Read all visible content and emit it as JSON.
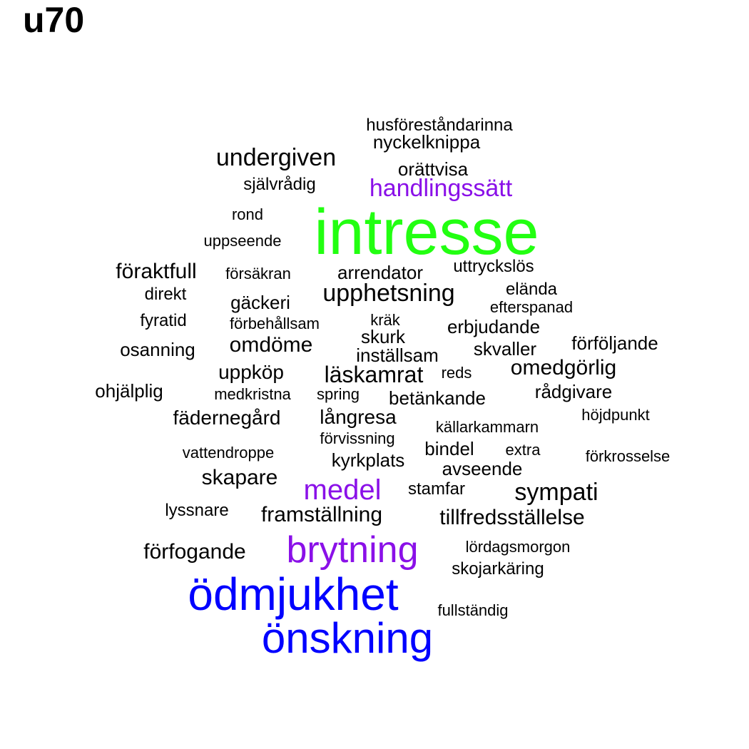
{
  "title": "u70",
  "colors": {
    "green": "#22ff11",
    "purple": "#8a10e8",
    "blue": "#0000ff",
    "black": "#000000"
  },
  "words": [
    {
      "text": "intresse",
      "color": "green"
    },
    {
      "text": "ödmjukhet",
      "color": "blue"
    },
    {
      "text": "önskning",
      "color": "blue"
    },
    {
      "text": "brytning",
      "color": "purple"
    },
    {
      "text": "medel",
      "color": "purple"
    },
    {
      "text": "handlingssätt",
      "color": "purple"
    },
    {
      "text": "husföreståndarinna",
      "color": "black"
    },
    {
      "text": "nyckelknippa",
      "color": "black"
    },
    {
      "text": "undergiven",
      "color": "black"
    },
    {
      "text": "orättvisa",
      "color": "black"
    },
    {
      "text": "självrådig",
      "color": "black"
    },
    {
      "text": "rond",
      "color": "black"
    },
    {
      "text": "uppseende",
      "color": "black"
    },
    {
      "text": "föraktfull",
      "color": "black"
    },
    {
      "text": "försäkran",
      "color": "black"
    },
    {
      "text": "arrendator",
      "color": "black"
    },
    {
      "text": "uttryckslös",
      "color": "black"
    },
    {
      "text": "direkt",
      "color": "black"
    },
    {
      "text": "gäckeri",
      "color": "black"
    },
    {
      "text": "upphetsning",
      "color": "black"
    },
    {
      "text": "elända",
      "color": "black"
    },
    {
      "text": "efterspanad",
      "color": "black"
    },
    {
      "text": "fyratid",
      "color": "black"
    },
    {
      "text": "förbehållsam",
      "color": "black"
    },
    {
      "text": "kräk",
      "color": "black"
    },
    {
      "text": "erbjudande",
      "color": "black"
    },
    {
      "text": "skurk",
      "color": "black"
    },
    {
      "text": "förföljande",
      "color": "black"
    },
    {
      "text": "osanning",
      "color": "black"
    },
    {
      "text": "omdöme",
      "color": "black"
    },
    {
      "text": "inställsam",
      "color": "black"
    },
    {
      "text": "skvaller",
      "color": "black"
    },
    {
      "text": "uppköp",
      "color": "black"
    },
    {
      "text": "läskamrat",
      "color": "black"
    },
    {
      "text": "reds",
      "color": "black"
    },
    {
      "text": "omedgörlig",
      "color": "black"
    },
    {
      "text": "ohjälplig",
      "color": "black"
    },
    {
      "text": "medkristna",
      "color": "black"
    },
    {
      "text": "spring",
      "color": "black"
    },
    {
      "text": "betänkande",
      "color": "black"
    },
    {
      "text": "rådgivare",
      "color": "black"
    },
    {
      "text": "fädernegård",
      "color": "black"
    },
    {
      "text": "långresa",
      "color": "black"
    },
    {
      "text": "höjdpunkt",
      "color": "black"
    },
    {
      "text": "källarkammarn",
      "color": "black"
    },
    {
      "text": "förvissning",
      "color": "black"
    },
    {
      "text": "vattendroppe",
      "color": "black"
    },
    {
      "text": "bindel",
      "color": "black"
    },
    {
      "text": "extra",
      "color": "black"
    },
    {
      "text": "förkrosselse",
      "color": "black"
    },
    {
      "text": "kyrkplats",
      "color": "black"
    },
    {
      "text": "avseende",
      "color": "black"
    },
    {
      "text": "skapare",
      "color": "black"
    },
    {
      "text": "stamfar",
      "color": "black"
    },
    {
      "text": "sympati",
      "color": "black"
    },
    {
      "text": "lyssnare",
      "color": "black"
    },
    {
      "text": "framställning",
      "color": "black"
    },
    {
      "text": "tillfredsställelse",
      "color": "black"
    },
    {
      "text": "förfogande",
      "color": "black"
    },
    {
      "text": "lördagsmorgon",
      "color": "black"
    },
    {
      "text": "skojarkäring",
      "color": "black"
    },
    {
      "text": "fullständig",
      "color": "black"
    }
  ]
}
